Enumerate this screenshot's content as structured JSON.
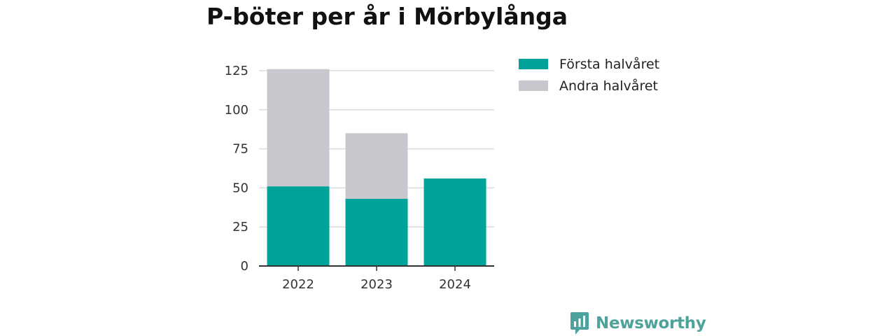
{
  "title": "P-böter per år i Mörbylånga",
  "brand": {
    "name": "Newsworthy",
    "icon": "bar-chart-bubble-icon",
    "color": "#4da39b"
  },
  "legend": [
    {
      "label": "Första halvåret",
      "color": "#00a39a"
    },
    {
      "label": "Andra halvåret",
      "color": "#c8c7cd"
    }
  ],
  "chart_data": {
    "type": "bar",
    "stacked": true,
    "categories": [
      "2022",
      "2023",
      "2024"
    ],
    "series": [
      {
        "name": "Första halvåret",
        "color": "#00a39a",
        "values": [
          51,
          43,
          56
        ]
      },
      {
        "name": "Andra halvåret",
        "color": "#c8c7cd",
        "values": [
          75,
          42,
          0
        ]
      }
    ],
    "ylim": [
      0,
      125
    ],
    "yticks": [
      0,
      25,
      50,
      75,
      100,
      125
    ],
    "grid": true,
    "legend_position": "right"
  }
}
